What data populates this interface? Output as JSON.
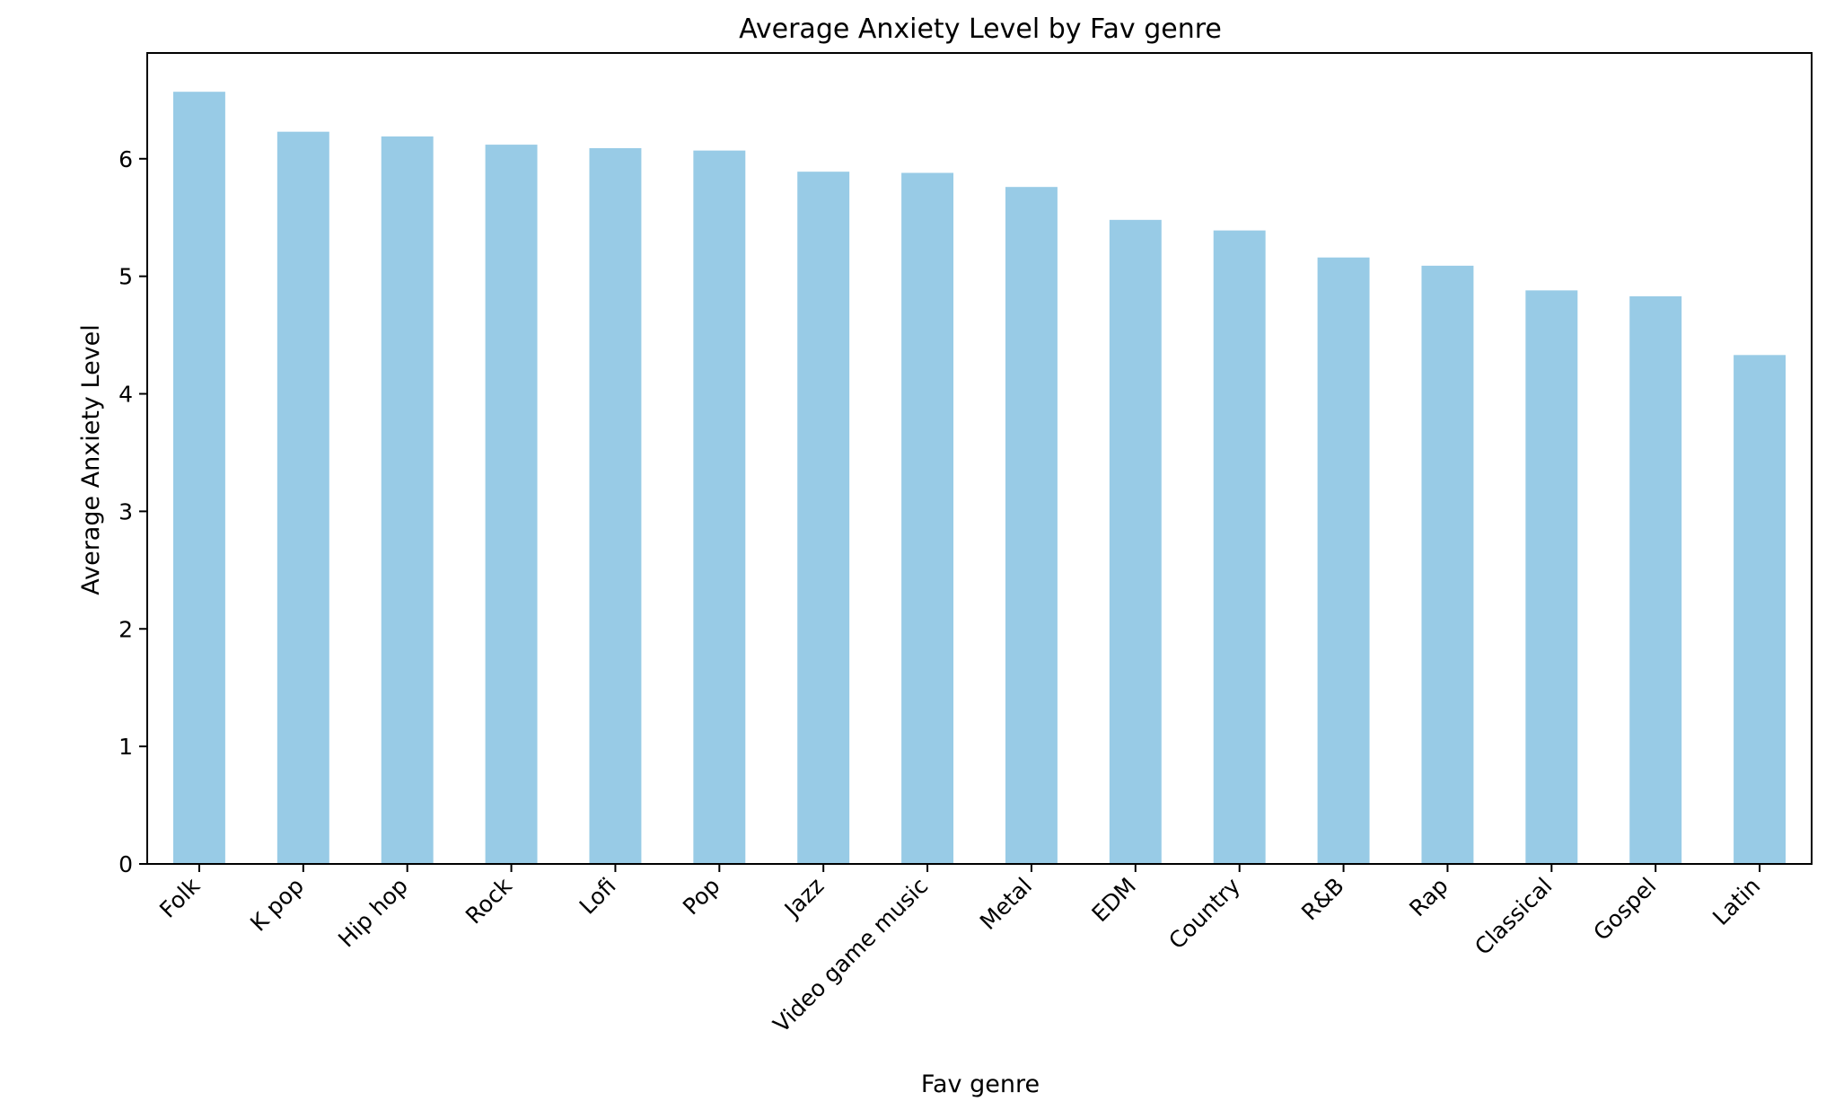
{
  "chart_data": {
    "type": "bar",
    "title": "Average Anxiety Level by Fav genre",
    "xlabel": "Fav genre",
    "ylabel": "Average Anxiety Level",
    "categories": [
      "Folk",
      "K pop",
      "Hip hop",
      "Rock",
      "Lofi",
      "Pop",
      "Jazz",
      "Video game music",
      "Metal",
      "EDM",
      "Country",
      "R&B",
      "Rap",
      "Classical",
      "Gospel",
      "Latin"
    ],
    "values": [
      6.57,
      6.23,
      6.19,
      6.12,
      6.09,
      6.07,
      5.89,
      5.88,
      5.76,
      5.48,
      5.39,
      5.16,
      5.09,
      4.88,
      4.83,
      4.33
    ],
    "ylim": [
      0,
      6.9
    ],
    "yticks": [
      0,
      1,
      2,
      3,
      4,
      5,
      6
    ],
    "bar_color": "#98CBE6",
    "grid": false,
    "legend": "none"
  }
}
